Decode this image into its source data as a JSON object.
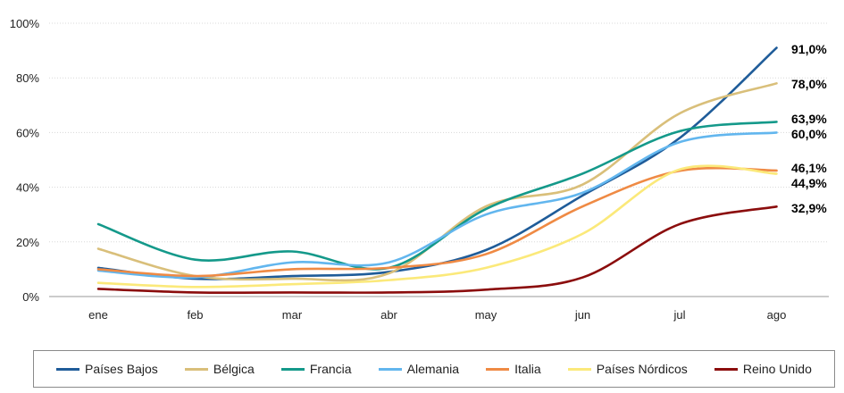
{
  "chart_data": {
    "type": "line",
    "categories": [
      "ene",
      "feb",
      "mar",
      "abr",
      "may",
      "jun",
      "jul",
      "ago"
    ],
    "ylim": [
      0,
      100
    ],
    "yticks": [
      "0%",
      "20%",
      "40%",
      "60%",
      "80%",
      "100%"
    ],
    "grid": true,
    "legend_position": "bottom",
    "series": [
      {
        "name": "Países Bajos",
        "color": "#1f5c99",
        "values": [
          10.5,
          6.5,
          7.5,
          9,
          17,
          37,
          58,
          91
        ],
        "end_label": "91,0%"
      },
      {
        "name": "Bélgica",
        "color": "#d9bf7a",
        "values": [
          17.5,
          7.5,
          6.5,
          8.5,
          33,
          41,
          67,
          78
        ],
        "end_label": "78,0%"
      },
      {
        "name": "Francia",
        "color": "#14998a",
        "values": [
          26.5,
          13.5,
          16.5,
          10.5,
          32,
          45,
          60.5,
          63.9
        ],
        "end_label": "63,9%"
      },
      {
        "name": "Alemania",
        "color": "#62b6ee",
        "values": [
          9.5,
          7,
          12.5,
          12.5,
          30,
          38,
          56.5,
          60
        ],
        "end_label": "60,0%"
      },
      {
        "name": "Italia",
        "color": "#ef8a44",
        "values": [
          10,
          7.5,
          10,
          10.5,
          15.5,
          33,
          46,
          46.1
        ],
        "end_label": "46,1%"
      },
      {
        "name": "Países Nórdicos",
        "color": "#fbe97a",
        "values": [
          5,
          3.5,
          4.5,
          6,
          10.5,
          23,
          46.5,
          44.9
        ],
        "end_label": "44,9%"
      },
      {
        "name": "Reino Unido",
        "color": "#8b0d0d",
        "values": [
          2.8,
          1.5,
          1.5,
          1.5,
          2.5,
          7,
          26.5,
          32.9
        ],
        "end_label": "32,9%"
      }
    ]
  }
}
